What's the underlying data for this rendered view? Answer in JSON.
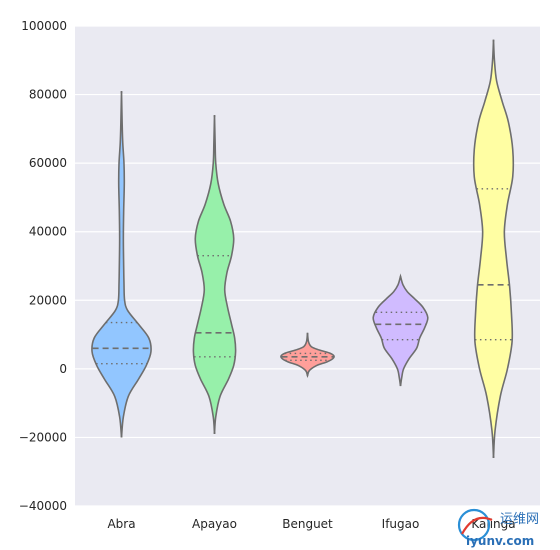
{
  "chart_data": {
    "type": "violin",
    "title": "",
    "xlabel": "",
    "ylabel": "",
    "ylim": [
      -40000,
      100000
    ],
    "yticks": [
      -40000,
      -20000,
      0,
      20000,
      40000,
      60000,
      80000,
      100000
    ],
    "ytick_labels": [
      "−40000",
      "−20000",
      "0",
      "20000",
      "40000",
      "60000",
      "80000",
      "100000"
    ],
    "grid": true,
    "categories": [
      "Abra",
      "Apayao",
      "Benguet",
      "Ifugao",
      "Kalinga"
    ],
    "series": [
      {
        "category": "Abra",
        "color": "#92c6ff",
        "min": -20000,
        "max": 81000,
        "q1": 1500,
        "median": 6000,
        "q3": 13500,
        "profile": [
          [
            -20000,
            0.0
          ],
          [
            -14000,
            0.06
          ],
          [
            -8000,
            0.22
          ],
          [
            -3000,
            0.55
          ],
          [
            1000,
            0.8
          ],
          [
            5000,
            0.95
          ],
          [
            9000,
            0.88
          ],
          [
            13000,
            0.55
          ],
          [
            17000,
            0.2
          ],
          [
            20000,
            0.1
          ],
          [
            25000,
            0.08
          ],
          [
            30000,
            0.07
          ],
          [
            38000,
            0.06
          ],
          [
            46000,
            0.07
          ],
          [
            54000,
            0.09
          ],
          [
            60000,
            0.08
          ],
          [
            66000,
            0.04
          ],
          [
            72000,
            0.02
          ],
          [
            81000,
            0.0
          ]
        ]
      },
      {
        "category": "Apayao",
        "color": "#97f0aa",
        "min": -19000,
        "max": 74000,
        "q1": 3500,
        "median": 10500,
        "q3": 33000,
        "profile": [
          [
            -19000,
            0.0
          ],
          [
            -14000,
            0.04
          ],
          [
            -8000,
            0.18
          ],
          [
            -3000,
            0.45
          ],
          [
            1000,
            0.62
          ],
          [
            5000,
            0.68
          ],
          [
            9000,
            0.65
          ],
          [
            13000,
            0.55
          ],
          [
            18000,
            0.42
          ],
          [
            23000,
            0.33
          ],
          [
            28000,
            0.4
          ],
          [
            33000,
            0.55
          ],
          [
            38000,
            0.62
          ],
          [
            43000,
            0.52
          ],
          [
            48000,
            0.3
          ],
          [
            54000,
            0.12
          ],
          [
            60000,
            0.04
          ],
          [
            66000,
            0.02
          ],
          [
            74000,
            0.0
          ]
        ]
      },
      {
        "category": "Benguet",
        "color": "#ff9f9a",
        "min": -2000,
        "max": 10500,
        "q1": 2500,
        "median": 3500,
        "q3": 4500,
        "profile": [
          [
            -2000,
            0.0
          ],
          [
            -500,
            0.06
          ],
          [
            1000,
            0.3
          ],
          [
            2000,
            0.62
          ],
          [
            3000,
            0.82
          ],
          [
            3800,
            0.85
          ],
          [
            4600,
            0.72
          ],
          [
            5500,
            0.38
          ],
          [
            6500,
            0.12
          ],
          [
            8000,
            0.03
          ],
          [
            10500,
            0.0
          ]
        ]
      },
      {
        "category": "Ifugao",
        "color": "#d0bbff",
        "min": -5000,
        "max": 27000,
        "q1": 8500,
        "median": 13000,
        "q3": 16500,
        "profile": [
          [
            -5000,
            0.0
          ],
          [
            -2500,
            0.04
          ],
          [
            0,
            0.1
          ],
          [
            3000,
            0.28
          ],
          [
            6000,
            0.52
          ],
          [
            9000,
            0.62
          ],
          [
            12000,
            0.78
          ],
          [
            15000,
            0.88
          ],
          [
            18000,
            0.72
          ],
          [
            20500,
            0.45
          ],
          [
            22500,
            0.22
          ],
          [
            24500,
            0.08
          ],
          [
            27000,
            0.0
          ]
        ]
      },
      {
        "category": "Kalinga",
        "color": "#fffea3",
        "min": -26000,
        "max": 96000,
        "q1": 8500,
        "median": 24500,
        "q3": 52500,
        "profile": [
          [
            -26000,
            0.0
          ],
          [
            -18000,
            0.05
          ],
          [
            -8000,
            0.22
          ],
          [
            0,
            0.45
          ],
          [
            8000,
            0.6
          ],
          [
            16000,
            0.58
          ],
          [
            24000,
            0.52
          ],
          [
            32000,
            0.42
          ],
          [
            40000,
            0.35
          ],
          [
            48000,
            0.45
          ],
          [
            56000,
            0.62
          ],
          [
            64000,
            0.62
          ],
          [
            72000,
            0.48
          ],
          [
            78000,
            0.28
          ],
          [
            84000,
            0.1
          ],
          [
            90000,
            0.03
          ],
          [
            96000,
            0.0
          ]
        ]
      }
    ]
  },
  "watermark": {
    "text_cn": "运维网",
    "text_url": "iyunv.com"
  },
  "colors": {
    "plot_background": "#eaeaf2",
    "grid": "#ffffff",
    "outline": "#6e6e6e",
    "text": "#262626"
  }
}
